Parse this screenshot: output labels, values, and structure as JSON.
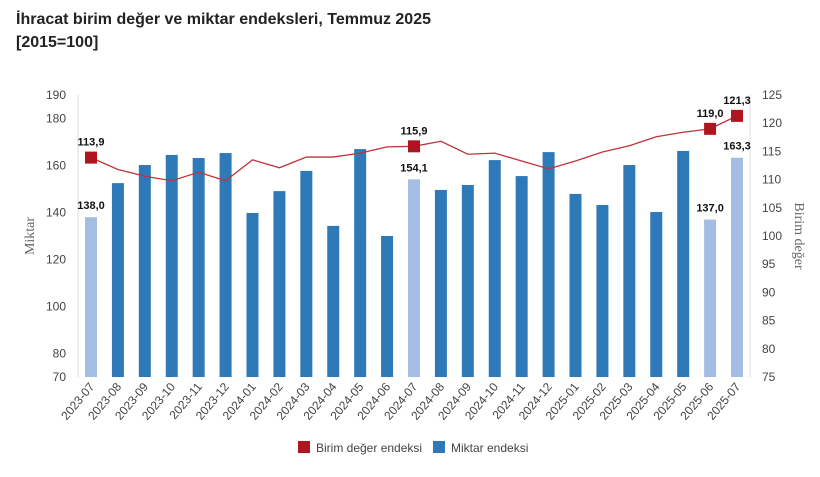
{
  "chart_data": {
    "type": "bar+line",
    "title": "İhracat birim değer ve miktar endeksleri, Temmuz 2025",
    "subtitle": "[2015=100]",
    "ylabel": "Miktar",
    "y2label": "Birim değer",
    "ylim": [
      70,
      190
    ],
    "y2lim": [
      75,
      125
    ],
    "yticks": [
      70,
      80,
      100,
      120,
      140,
      160,
      180,
      190
    ],
    "y2ticks": [
      75,
      80,
      85,
      90,
      95,
      100,
      105,
      110,
      115,
      120,
      125
    ],
    "legend_position": "bottom",
    "categories": [
      "2023-07",
      "2023-08",
      "2023-09",
      "2023-10",
      "2023-11",
      "2023-12",
      "2024-01",
      "2024-02",
      "2024-03",
      "2024-04",
      "2024-05",
      "2024-06",
      "2024-07",
      "2024-08",
      "2024-09",
      "2024-10",
      "2024-11",
      "2024-12",
      "2025-01",
      "2025-02",
      "2025-03",
      "2025-04",
      "2025-05",
      "2025-06",
      "2025-07"
    ],
    "series": [
      {
        "name": "Birim değer endeksi",
        "type": "line",
        "axis": "right",
        "color": "#b0141e",
        "values": [
          113.9,
          111.8,
          110.6,
          109.8,
          111.3,
          109.8,
          113.5,
          112.1,
          114.0,
          114.0,
          114.7,
          115.8,
          115.9,
          116.8,
          114.5,
          114.7,
          113.3,
          111.9,
          113.3,
          114.9,
          116.0,
          117.6,
          118.4,
          119.0,
          121.3
        ],
        "labels": {
          "0": "113,9",
          "12": "115,9",
          "23": "119,0",
          "24": "121,3"
        }
      },
      {
        "name": "Miktar endeksi",
        "type": "bar",
        "axis": "left",
        "color": "#2e7ab8",
        "highlight_color": "#a3bde3",
        "values": [
          138.0,
          152.5,
          160.2,
          164.5,
          163.2,
          165.3,
          139.8,
          149.1,
          157.7,
          134.3,
          167.0,
          130.0,
          154.1,
          149.6,
          151.7,
          162.3,
          155.5,
          165.7,
          147.9,
          143.2,
          160.2,
          140.2,
          166.2,
          137.0,
          163.3
        ],
        "labels": {
          "0": "138,0",
          "12": "154,1",
          "23": "137,0",
          "24": "163,3"
        }
      }
    ]
  }
}
